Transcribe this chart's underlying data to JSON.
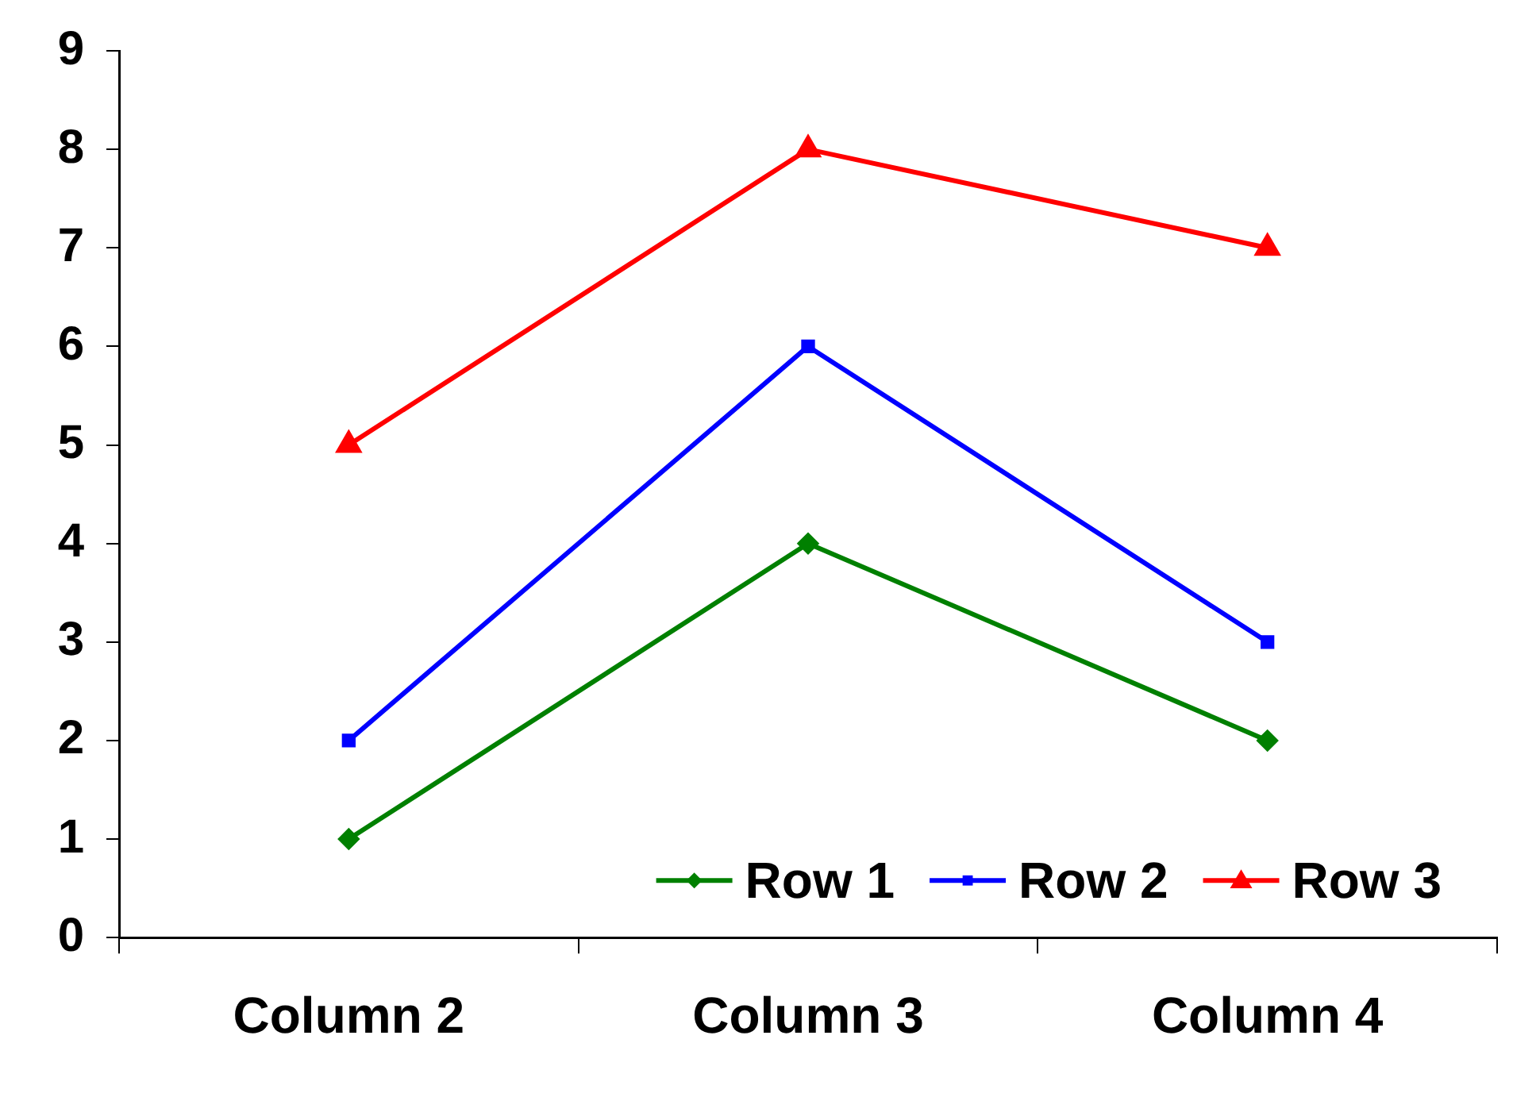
{
  "chart_data": {
    "type": "line",
    "categories": [
      "Column 2",
      "Column 3",
      "Column 4"
    ],
    "series": [
      {
        "name": "Row 1",
        "color": "#008000",
        "values": [
          1,
          4,
          2
        ],
        "marker": "diamond"
      },
      {
        "name": "Row 2",
        "color": "#0000ff",
        "values": [
          2,
          6,
          3
        ],
        "marker": "square"
      },
      {
        "name": "Row 3",
        "color": "#ff0000",
        "values": [
          5,
          8,
          7
        ],
        "marker": "triangle"
      }
    ],
    "ylim": [
      0,
      9
    ],
    "yticks": [
      0,
      1,
      2,
      3,
      4,
      5,
      6,
      7,
      8,
      9
    ],
    "grid": false,
    "legend": "bottom right",
    "line_style": "solid"
  }
}
